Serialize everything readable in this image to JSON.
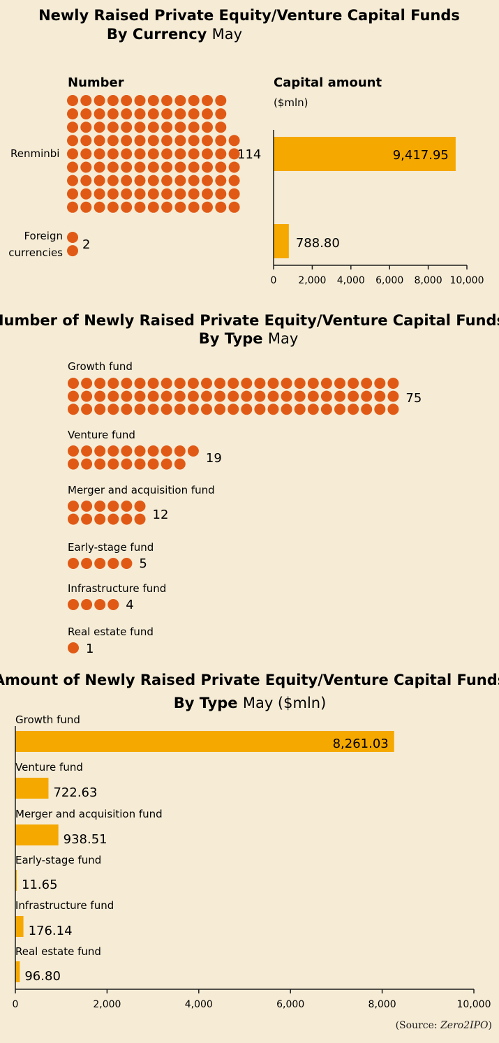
{
  "chart_data": [
    {
      "type": "dot",
      "title": "Newly Raised Private Equity/Venture Capital Funds",
      "subtitle_bold": "By Currency",
      "subtitle_light": "May",
      "panel_label": "Number",
      "categories": [
        "Renminbi",
        "Foreign currencies"
      ],
      "values": [
        114,
        2
      ],
      "value_labels": [
        "114",
        "2"
      ],
      "color": "#e05a16"
    },
    {
      "type": "bar",
      "orientation": "horizontal",
      "panel_label": "Capital amount",
      "unit_label": "($mln)",
      "categories": [
        "Renminbi",
        "Foreign currencies"
      ],
      "values": [
        9417.95,
        788.8
      ],
      "value_labels": [
        "9,417.95",
        "788.80"
      ],
      "xlim": [
        0,
        10000
      ],
      "xticks": [
        0,
        2000,
        4000,
        6000,
        8000,
        10000
      ],
      "xtick_labels": [
        "0",
        "2,000",
        "4,000",
        "6,000",
        "8,000",
        "10,000"
      ],
      "color": "#f5a800"
    },
    {
      "type": "dot",
      "title": "Number of Newly Raised Private Equity/Venture Capital Funds",
      "subtitle_bold": "By Type",
      "subtitle_light": "May",
      "categories": [
        "Growth fund",
        "Venture fund",
        "Merger and acquisition fund",
        "Early-stage fund",
        "Infrastructure fund",
        "Real estate fund"
      ],
      "values": [
        75,
        19,
        12,
        5,
        4,
        1
      ],
      "value_labels": [
        "75",
        "19",
        "12",
        "5",
        "4",
        "1"
      ],
      "color": "#e05a16"
    },
    {
      "type": "bar",
      "orientation": "horizontal",
      "title": "Amount of Newly Raised Private Equity/Venture Capital Funds",
      "subtitle_bold": "By Type",
      "subtitle_light": "May ($mln)",
      "categories": [
        "Growth fund",
        "Venture fund",
        "Merger and acquisition fund",
        "Early-stage fund",
        "Infrastructure fund",
        "Real estate fund"
      ],
      "values": [
        8261.03,
        722.63,
        938.51,
        11.65,
        176.14,
        96.8
      ],
      "value_labels": [
        "8,261.03",
        "722.63",
        "938.51",
        "11.65",
        "176.14",
        "96.80"
      ],
      "xlim": [
        0,
        10000
      ],
      "xticks": [
        0,
        2000,
        4000,
        6000,
        8000,
        10000
      ],
      "xtick_labels": [
        "0",
        "2,000",
        "4,000",
        "6,000",
        "8,000",
        "10,000"
      ],
      "color": "#f5a800"
    }
  ],
  "source": {
    "prefix": "(Source: ",
    "name": "Zero2IPO",
    "suffix": ")"
  }
}
